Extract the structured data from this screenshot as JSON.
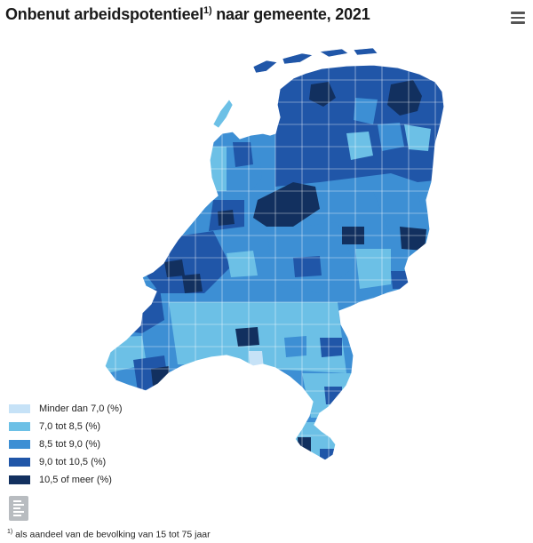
{
  "title": {
    "text": "Onbenut arbeidspotentieel",
    "superscript": "1)",
    "suffix": " naar gemeente, 2021"
  },
  "menu": {
    "icon": "hamburger-menu-icon"
  },
  "legend": [
    {
      "label": "Minder dan 7,0 (%)",
      "color": "#c6e2f7"
    },
    {
      "label": "7,0 tot 8,5 (%)",
      "color": "#6cc0e6"
    },
    {
      "label": "8,5 tot 9,0 (%)",
      "color": "#3d8fd4"
    },
    {
      "label": "9,0 tot 10,5 (%)",
      "color": "#2056a8"
    },
    {
      "label": "10,5 of meer (%)",
      "color": "#12305f"
    }
  ],
  "footnote": {
    "superscript": "1)",
    "text": " als aandeel van de bevolking van 15 tot 75 jaar"
  },
  "logo": {
    "icon": "cbs-logo-icon"
  }
}
